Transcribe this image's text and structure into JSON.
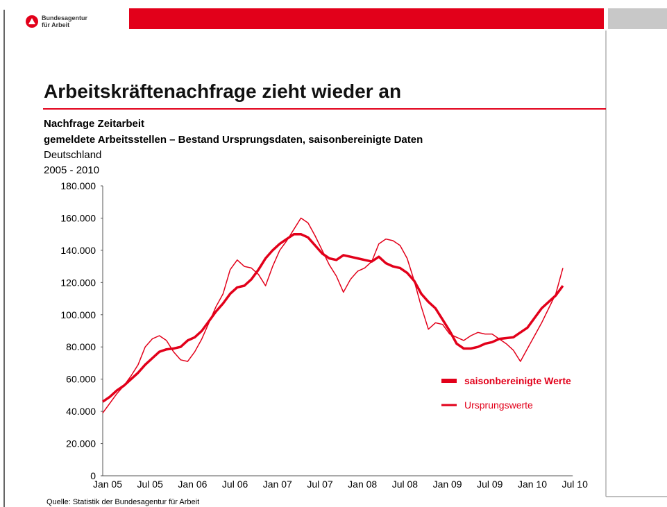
{
  "header": {
    "logo_line1": "Bundesagentur",
    "logo_line2": "für Arbeit"
  },
  "footer": {
    "source": "Quelle: Statistik der Bundesagentur für Arbeit"
  },
  "chart_data": {
    "type": "line",
    "title": "Arbeitskräftenachfrage zieht wieder an",
    "subtitle_lines": [
      "Nachfrage Zeitarbeit",
      "gemeldete Arbeitsstellen – Bestand Ursprungsdaten, saisonbereinigte Daten",
      "Deutschland",
      "2005 - 2010"
    ],
    "categories": [
      "Jan 05",
      null,
      null,
      null,
      null,
      null,
      "Jul 05",
      null,
      null,
      null,
      null,
      null,
      "Jan 06",
      null,
      null,
      null,
      null,
      null,
      "Jul 06",
      null,
      null,
      null,
      null,
      null,
      "Jan 07",
      null,
      null,
      null,
      null,
      null,
      "Jul 07",
      null,
      null,
      null,
      null,
      null,
      "Jan 08",
      null,
      null,
      null,
      null,
      null,
      "Jul 08",
      null,
      null,
      null,
      null,
      null,
      "Jan 09",
      null,
      null,
      null,
      null,
      null,
      "Jul 09",
      null,
      null,
      null,
      null,
      null,
      "Jan 10",
      null,
      null,
      null,
      null,
      null,
      "Jul 10"
    ],
    "series": [
      {
        "name": "saisonbereinigte Werte",
        "color": "#e2001a",
        "width": 3.5,
        "values": [
          46000,
          49000,
          53000,
          56000,
          60000,
          64000,
          69000,
          73000,
          77000,
          78500,
          79000,
          80000,
          84000,
          86000,
          90000,
          96000,
          102000,
          107000,
          113000,
          117000,
          118000,
          122000,
          128000,
          135000,
          140000,
          144000,
          147000,
          150000,
          150000,
          148000,
          143000,
          138000,
          135000,
          134000,
          137000,
          136000,
          135000,
          134000,
          133000,
          136000,
          132000,
          130000,
          129000,
          126000,
          121000,
          113000,
          108000,
          104000,
          97000,
          90000,
          82000,
          79000,
          79000,
          80000,
          82000,
          83000,
          85000,
          85500,
          86000,
          89000,
          92000,
          98000,
          104000,
          108000,
          112000,
          118000,
          null
        ]
      },
      {
        "name": "Ursprungswerte",
        "color": "#e2001a",
        "width": 1.5,
        "values": [
          39000,
          45000,
          51000,
          56000,
          62000,
          69000,
          80000,
          85000,
          87000,
          84000,
          77000,
          72000,
          71000,
          77000,
          85000,
          95000,
          105000,
          113000,
          128000,
          134000,
          130000,
          129000,
          125000,
          118000,
          130000,
          140000,
          146000,
          153000,
          160000,
          157000,
          149000,
          140000,
          131000,
          124000,
          114000,
          122000,
          127000,
          129000,
          133000,
          144000,
          147000,
          146000,
          143000,
          135000,
          121000,
          105000,
          91000,
          95000,
          94000,
          88000,
          86000,
          84000,
          87000,
          89000,
          88000,
          88000,
          85000,
          82000,
          78000,
          71000,
          79000,
          87000,
          95000,
          104000,
          113000,
          129000,
          null
        ]
      }
    ],
    "ylim": [
      0,
      180000
    ],
    "yticks": [
      0,
      {
        "value": 20000,
        "label": "20.000"
      },
      {
        "value": 40000,
        "label": "40.000"
      },
      {
        "value": 60000,
        "label": "60.000"
      },
      {
        "value": 80000,
        "label": "80.000"
      },
      {
        "value": 100000,
        "label": "100.000"
      },
      {
        "value": 120000,
        "label": "120.000"
      },
      {
        "value": 140000,
        "label": "140.000"
      },
      {
        "value": 160000,
        "label": "160.000"
      },
      {
        "value": 180000,
        "label": "180.000"
      }
    ],
    "legend": "right",
    "grid": false
  }
}
